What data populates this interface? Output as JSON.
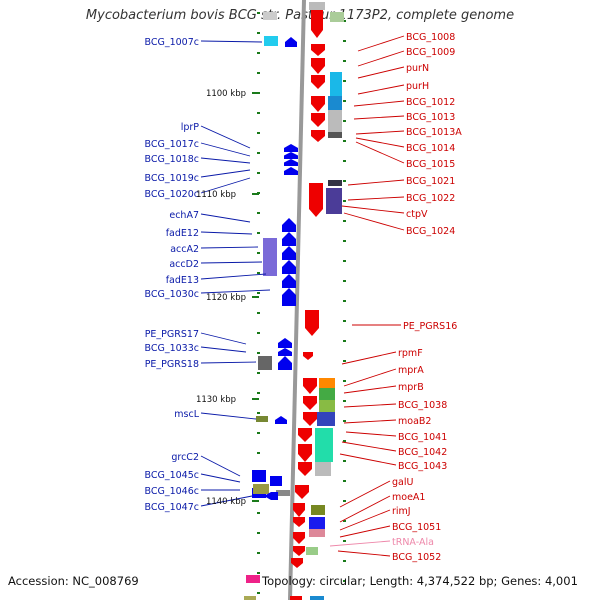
{
  "title": "Mycobacterium bovis BCG str. Pasteur 1173P2, complete genome",
  "footer": {
    "accession": "Accession: NC_008769",
    "topology": "Topology: circular; Length: 4,374,522 bp; Genes: 4,001"
  },
  "scale_labels": [
    "1100 kbp",
    "1110 kbp",
    "1120 kbp",
    "1130 kbp",
    "1140 kbp"
  ],
  "left_genes": [
    "BCG_1007c",
    "lprP",
    "BCG_1017c",
    "BCG_1018c",
    "BCG_1019c",
    "BCG_1020c",
    "echA7",
    "fadE12",
    "accA2",
    "accD2",
    "fadE13",
    "BCG_1030c",
    "PE_PGRS17",
    "BCG_1033c",
    "PE_PGRS18",
    "mscL",
    "grcC2",
    "BCG_1045c",
    "BCG_1046c",
    "BCG_1047c"
  ],
  "right_genes": [
    "BCG_1008",
    "BCG_1009",
    "purN",
    "purH",
    "BCG_1012",
    "BCG_1013",
    "BCG_1013A",
    "BCG_1014",
    "BCG_1015",
    "BCG_1021",
    "BCG_1022",
    "ctpV",
    "BCG_1024",
    "PE_PGRS16",
    "rpmF",
    "mprA",
    "mprB",
    "BCG_1038",
    "moaB2",
    "BCG_1041",
    "BCG_1042",
    "BCG_1043",
    "galU",
    "moeA1",
    "rimJ",
    "BCG_1051",
    "tRNA-Ala",
    "BCG_1052"
  ],
  "colors": {
    "forward_gene": "#ee0000",
    "reverse_gene": "#0000ee",
    "left_label": "#0a1aa8",
    "right_label": "#cc0000",
    "trna_label": "#ee88aa",
    "backbone": "#999999",
    "tick": "#1a7a1a"
  }
}
